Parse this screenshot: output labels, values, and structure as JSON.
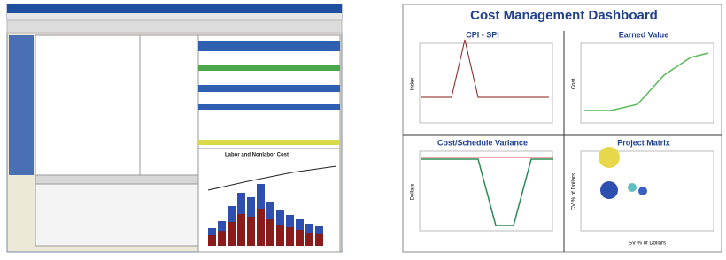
{
  "left_window": {
    "chart_title": "Labor and Nonlabor Cost"
  },
  "dashboard": {
    "title": "Cost Management Dashboard",
    "panels": [
      {
        "title": "CPI - SPI",
        "y_label": "Index"
      },
      {
        "title": "Earned Value",
        "y_label": "Cost"
      },
      {
        "title": "Cost/Schedule Variance",
        "y_label": "Dollars"
      },
      {
        "title": "Project Matrix",
        "y_label": "CV % of Dollars",
        "x_label": "SV % of Dollars"
      }
    ]
  }
}
